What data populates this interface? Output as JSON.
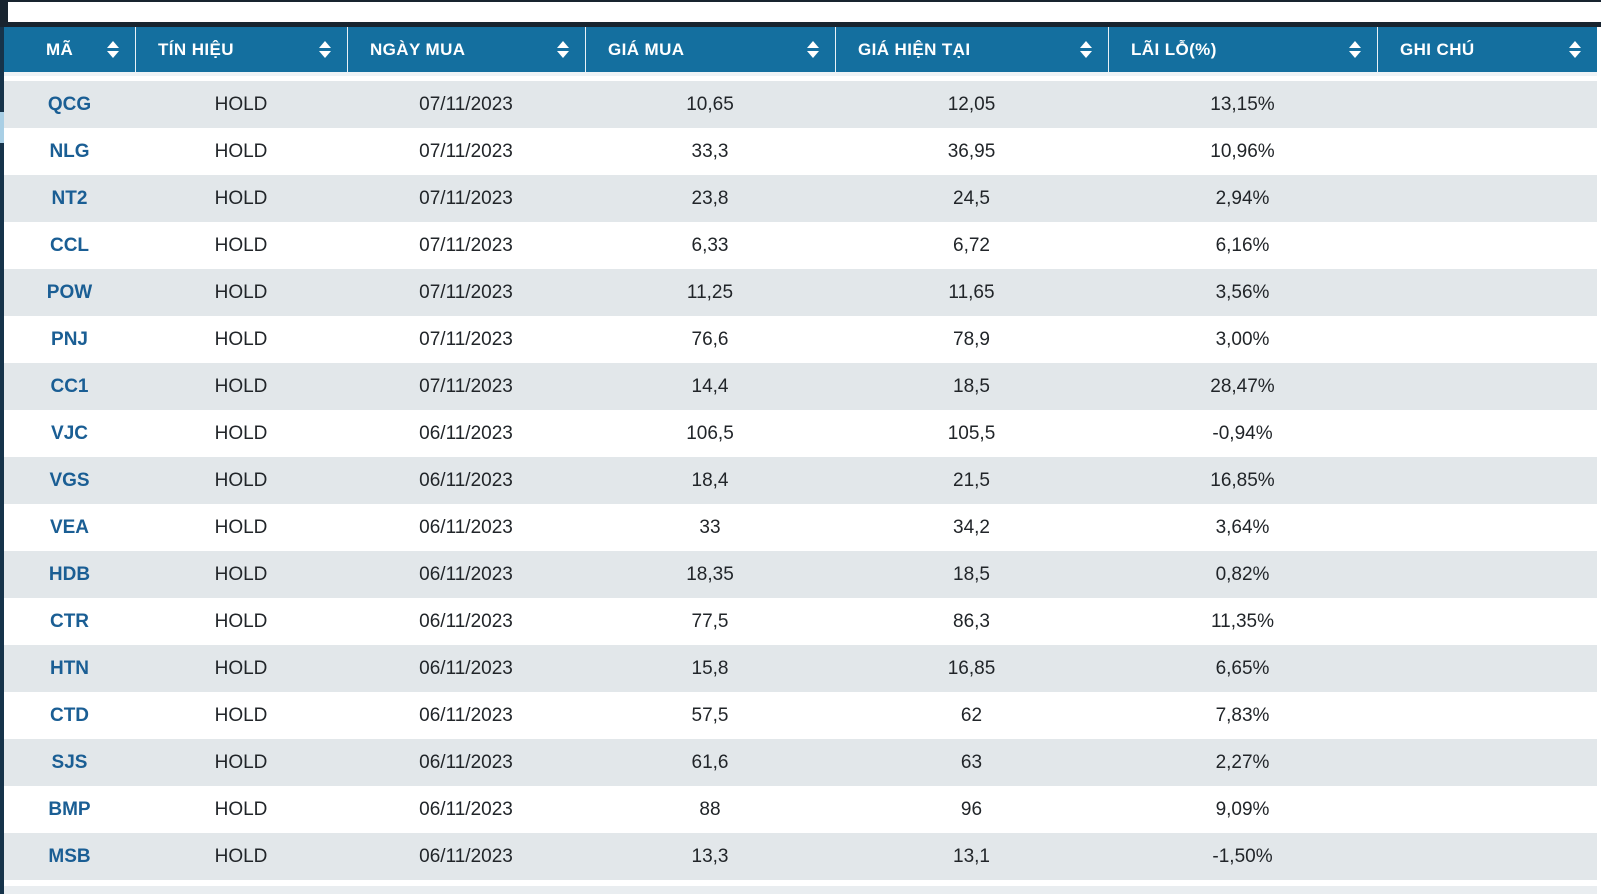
{
  "table": {
    "columns": [
      {
        "label": "MÃ"
      },
      {
        "label": "TÍN HIỆU"
      },
      {
        "label": "NGÀY MUA"
      },
      {
        "label": "GIÁ MUA"
      },
      {
        "label": "GIÁ HIỆN TẠI"
      },
      {
        "label": "LÃI LỖ(%)"
      },
      {
        "label": "GHI CHÚ"
      }
    ],
    "rows": [
      [
        "QCG",
        "HOLD",
        "07/11/2023",
        "10,65",
        "12,05",
        "13,15%",
        ""
      ],
      [
        "NLG",
        "HOLD",
        "07/11/2023",
        "33,3",
        "36,95",
        "10,96%",
        ""
      ],
      [
        "NT2",
        "HOLD",
        "07/11/2023",
        "23,8",
        "24,5",
        "2,94%",
        ""
      ],
      [
        "CCL",
        "HOLD",
        "07/11/2023",
        "6,33",
        "6,72",
        "6,16%",
        ""
      ],
      [
        "POW",
        "HOLD",
        "07/11/2023",
        "11,25",
        "11,65",
        "3,56%",
        ""
      ],
      [
        "PNJ",
        "HOLD",
        "07/11/2023",
        "76,6",
        "78,9",
        "3,00%",
        ""
      ],
      [
        "CC1",
        "HOLD",
        "07/11/2023",
        "14,4",
        "18,5",
        "28,47%",
        ""
      ],
      [
        "VJC",
        "HOLD",
        "06/11/2023",
        "106,5",
        "105,5",
        "-0,94%",
        ""
      ],
      [
        "VGS",
        "HOLD",
        "06/11/2023",
        "18,4",
        "21,5",
        "16,85%",
        ""
      ],
      [
        "VEA",
        "HOLD",
        "06/11/2023",
        "33",
        "34,2",
        "3,64%",
        ""
      ],
      [
        "HDB",
        "HOLD",
        "06/11/2023",
        "18,35",
        "18,5",
        "0,82%",
        ""
      ],
      [
        "CTR",
        "HOLD",
        "06/11/2023",
        "77,5",
        "86,3",
        "11,35%",
        ""
      ],
      [
        "HTN",
        "HOLD",
        "06/11/2023",
        "15,8",
        "16,85",
        "6,65%",
        ""
      ],
      [
        "CTD",
        "HOLD",
        "06/11/2023",
        "57,5",
        "62",
        "7,83%",
        ""
      ],
      [
        "SJS",
        "HOLD",
        "06/11/2023",
        "61,6",
        "63",
        "2,27%",
        ""
      ],
      [
        "BMP",
        "HOLD",
        "06/11/2023",
        "88",
        "96",
        "9,09%",
        ""
      ],
      [
        "MSB",
        "HOLD",
        "06/11/2023",
        "13,3",
        "13,1",
        "-1,50%",
        ""
      ]
    ]
  },
  "icons": {
    "sort_icon": "up-down-triangles"
  },
  "colors": {
    "header_background": "#146f9f",
    "header_text": "#ffffff",
    "ticker_text": "#1a5e94",
    "body_text": "#212529",
    "row_alt_background": "#e2e7ea",
    "row_background": "#ffffff",
    "top_rule": "#18242f",
    "scrollbar_track": "#16334a",
    "scrollbar_thumb": "#a9cfe5"
  }
}
